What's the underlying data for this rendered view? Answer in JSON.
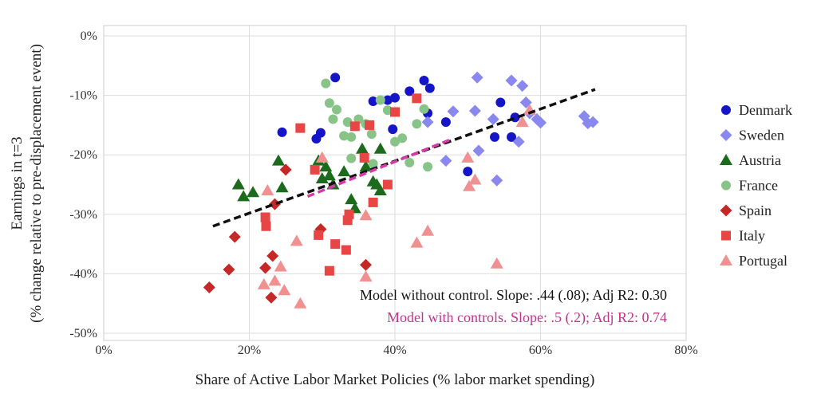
{
  "chart_data": {
    "type": "scatter",
    "title": "",
    "xlabel": "Share of Active Labor Market Policies (% labor market spending)",
    "ylabel": [
      "Earnings in t=3",
      "(% change relative to pre-displacement event)"
    ],
    "xlim": [
      0,
      0.8
    ],
    "ylim": [
      -0.5,
      0
    ],
    "xticks": [
      "0%",
      "20%",
      "40%",
      "60%",
      "80%"
    ],
    "yticks": [
      "0%",
      "-10%",
      "-20%",
      "-30%",
      "-40%",
      "-50%"
    ],
    "grid": true,
    "legend_position": "right",
    "series": [
      {
        "name": "Denmark",
        "marker": "circle",
        "color": "#1515c8",
        "points": [
          [
            0.245,
            -0.162
          ],
          [
            0.292,
            -0.173
          ],
          [
            0.298,
            -0.163
          ],
          [
            0.318,
            -0.07
          ],
          [
            0.37,
            -0.11
          ],
          [
            0.39,
            -0.108
          ],
          [
            0.397,
            -0.157
          ],
          [
            0.4,
            -0.104
          ],
          [
            0.42,
            -0.093
          ],
          [
            0.44,
            -0.075
          ],
          [
            0.445,
            -0.13
          ],
          [
            0.448,
            -0.088
          ],
          [
            0.47,
            -0.145
          ],
          [
            0.5,
            -0.228
          ],
          [
            0.537,
            -0.17
          ],
          [
            0.545,
            -0.112
          ],
          [
            0.56,
            -0.17
          ],
          [
            0.565,
            -0.137
          ]
        ]
      },
      {
        "name": "Sweden",
        "marker": "diamond",
        "color": "#8888ee",
        "points": [
          [
            0.445,
            -0.145
          ],
          [
            0.47,
            -0.21
          ],
          [
            0.48,
            -0.127
          ],
          [
            0.51,
            -0.126
          ],
          [
            0.513,
            -0.07
          ],
          [
            0.515,
            -0.193
          ],
          [
            0.535,
            -0.14
          ],
          [
            0.54,
            -0.243
          ],
          [
            0.56,
            -0.075
          ],
          [
            0.57,
            -0.178
          ],
          [
            0.575,
            -0.084
          ],
          [
            0.58,
            -0.112
          ],
          [
            0.585,
            -0.13
          ],
          [
            0.595,
            -0.14
          ],
          [
            0.6,
            -0.146
          ],
          [
            0.66,
            -0.135
          ],
          [
            0.665,
            -0.147
          ],
          [
            0.672,
            -0.145
          ]
        ]
      },
      {
        "name": "Austria",
        "marker": "triangle",
        "color": "#1c6b1c",
        "points": [
          [
            0.185,
            -0.25
          ],
          [
            0.192,
            -0.27
          ],
          [
            0.205,
            -0.263
          ],
          [
            0.24,
            -0.21
          ],
          [
            0.245,
            -0.255
          ],
          [
            0.295,
            -0.21
          ],
          [
            0.3,
            -0.24
          ],
          [
            0.305,
            -0.22
          ],
          [
            0.31,
            -0.235
          ],
          [
            0.315,
            -0.25
          ],
          [
            0.33,
            -0.228
          ],
          [
            0.34,
            -0.275
          ],
          [
            0.345,
            -0.29
          ],
          [
            0.355,
            -0.19
          ],
          [
            0.36,
            -0.22
          ],
          [
            0.37,
            -0.245
          ],
          [
            0.375,
            -0.25
          ],
          [
            0.38,
            -0.19
          ],
          [
            0.38,
            -0.26
          ]
        ]
      },
      {
        "name": "France",
        "marker": "circle",
        "color": "#88c488",
        "points": [
          [
            0.305,
            -0.08
          ],
          [
            0.31,
            -0.113
          ],
          [
            0.32,
            -0.124
          ],
          [
            0.315,
            -0.14
          ],
          [
            0.33,
            -0.168
          ],
          [
            0.335,
            -0.145
          ],
          [
            0.34,
            -0.206
          ],
          [
            0.34,
            -0.17
          ],
          [
            0.35,
            -0.14
          ],
          [
            0.36,
            -0.148
          ],
          [
            0.368,
            -0.165
          ],
          [
            0.37,
            -0.215
          ],
          [
            0.38,
            -0.108
          ],
          [
            0.39,
            -0.125
          ],
          [
            0.4,
            -0.178
          ],
          [
            0.41,
            -0.172
          ],
          [
            0.42,
            -0.213
          ],
          [
            0.43,
            -0.148
          ],
          [
            0.44,
            -0.123
          ],
          [
            0.445,
            -0.22
          ]
        ]
      },
      {
        "name": "Spain",
        "marker": "diamond",
        "color": "#c62828",
        "points": [
          [
            0.145,
            -0.423
          ],
          [
            0.172,
            -0.393
          ],
          [
            0.18,
            -0.338
          ],
          [
            0.222,
            -0.39
          ],
          [
            0.23,
            -0.44
          ],
          [
            0.232,
            -0.37
          ],
          [
            0.235,
            -0.283
          ],
          [
            0.25,
            -0.225
          ],
          [
            0.298,
            -0.325
          ],
          [
            0.36,
            -0.385
          ]
        ]
      },
      {
        "name": "Italy",
        "marker": "square",
        "color": "#e84545",
        "points": [
          [
            0.222,
            -0.305
          ],
          [
            0.223,
            -0.32
          ],
          [
            0.27,
            -0.155
          ],
          [
            0.29,
            -0.225
          ],
          [
            0.295,
            -0.335
          ],
          [
            0.31,
            -0.395
          ],
          [
            0.318,
            -0.35
          ],
          [
            0.333,
            -0.36
          ],
          [
            0.335,
            -0.31
          ],
          [
            0.337,
            -0.3
          ],
          [
            0.345,
            -0.152
          ],
          [
            0.358,
            -0.205
          ],
          [
            0.365,
            -0.15
          ],
          [
            0.37,
            -0.28
          ],
          [
            0.39,
            -0.25
          ],
          [
            0.4,
            -0.128
          ],
          [
            0.43,
            -0.105
          ]
        ]
      },
      {
        "name": "Portugal",
        "marker": "triangle",
        "color": "#f09090",
        "points": [
          [
            0.22,
            -0.418
          ],
          [
            0.225,
            -0.26
          ],
          [
            0.235,
            -0.412
          ],
          [
            0.243,
            -0.388
          ],
          [
            0.248,
            -0.428
          ],
          [
            0.265,
            -0.345
          ],
          [
            0.27,
            -0.45
          ],
          [
            0.3,
            -0.205
          ],
          [
            0.36,
            -0.302
          ],
          [
            0.36,
            -0.405
          ],
          [
            0.43,
            -0.348
          ],
          [
            0.445,
            -0.328
          ],
          [
            0.5,
            -0.205
          ],
          [
            0.502,
            -0.253
          ],
          [
            0.51,
            -0.242
          ],
          [
            0.54,
            -0.383
          ],
          [
            0.575,
            -0.145
          ],
          [
            0.585,
            -0.125
          ]
        ]
      }
    ],
    "fit_lines": [
      {
        "name": "Model without control",
        "color": "#111111",
        "x": [
          0.15,
          0.675
        ],
        "y": [
          -0.32,
          -0.09
        ]
      },
      {
        "name": "Model with controls",
        "color": "#d63aa6",
        "x": [
          0.28,
          0.475
        ],
        "y": [
          -0.27,
          -0.175
        ]
      }
    ],
    "annotations": [
      {
        "text": "Model without control. Slope: .44 (.08); Adj R2: 0.30",
        "color": "#111111"
      },
      {
        "text": "Model with controls. Slope: .5 (.2); Adj R2: 0.74",
        "color": "#c2338f"
      }
    ]
  }
}
